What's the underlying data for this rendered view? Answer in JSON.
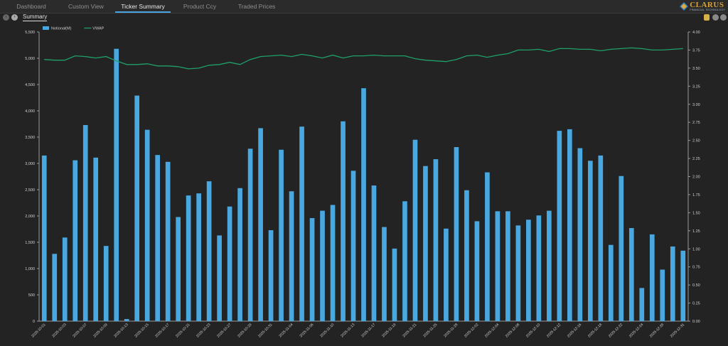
{
  "app": {
    "logo_text": "CLARUS",
    "logo_sub": "FINANCIAL TECHNOLOGY",
    "tabs": [
      {
        "label": "Dashboard",
        "active": false
      },
      {
        "label": "Custom View",
        "active": false
      },
      {
        "label": "Ticker Summary",
        "active": true
      },
      {
        "label": "Product Ccy",
        "active": false
      },
      {
        "label": "Traded Prices",
        "active": false
      }
    ],
    "subtab_label": "Summary",
    "accent_color": "#4aa3df"
  },
  "chart_data": {
    "type": "bar",
    "legend": [
      {
        "name": "Notional(M)",
        "color": "#4aa8e0"
      },
      {
        "name": "VWAP",
        "color": "#1fa06a"
      }
    ],
    "legend_position": "top-left",
    "categories": [
      "2025-10-01",
      "2025-10-02",
      "2025-10-03",
      "2025-10-06",
      "2025-10-07",
      "2025-10-08",
      "2025-10-09",
      "2025-10-10",
      "2025-10-13",
      "2025-10-14",
      "2025-10-15",
      "2025-10-16",
      "2025-10-17",
      "2025-10-20",
      "2025-10-21",
      "2025-10-22",
      "2025-10-23",
      "2025-10-24",
      "2025-10-27",
      "2025-10-28",
      "2025-10-29",
      "2025-10-30",
      "2025-10-31",
      "2025-11-03",
      "2025-11-04",
      "2025-11-05",
      "2025-11-06",
      "2025-11-07",
      "2025-11-10",
      "2025-11-12",
      "2025-11-13",
      "2025-11-14",
      "2025-11-17",
      "2025-11-18",
      "2025-11-19",
      "2025-11-20",
      "2025-11-21",
      "2025-11-24",
      "2025-11-25",
      "2025-11-26",
      "2025-11-28",
      "2025-12-01",
      "2025-12-02",
      "2025-12-03",
      "2025-12-04",
      "2025-12-05",
      "2025-12-08",
      "2025-12-09",
      "2025-12-10",
      "2025-12-11",
      "2025-12-12",
      "2025-12-15",
      "2025-12-16",
      "2025-12-17",
      "2025-12-18",
      "2025-12-19",
      "2025-12-22",
      "2025-12-23",
      "2025-12-24",
      "2025-12-26",
      "2025-12-29",
      "2025-12-30",
      "2025-12-31"
    ],
    "series": [
      {
        "name": "Notional(M)",
        "axis": "left",
        "values": [
          3150,
          1280,
          1590,
          3060,
          3730,
          3110,
          1430,
          5180,
          40,
          4290,
          3640,
          3160,
          3030,
          1980,
          2390,
          2430,
          2660,
          1630,
          2180,
          2530,
          3280,
          3670,
          1730,
          3260,
          2470,
          3700,
          1960,
          2100,
          2210,
          3800,
          2860,
          4430,
          2580,
          1790,
          1380,
          2280,
          3450,
          2950,
          3080,
          1760,
          3310,
          2490,
          1900,
          2830,
          2090,
          2090,
          1820,
          1930,
          2010,
          2100,
          3620,
          3650,
          3290,
          3050,
          3150,
          1450,
          2760,
          1770,
          630,
          1650,
          980,
          1420,
          1340
        ]
      },
      {
        "name": "VWAP",
        "axis": "right",
        "values": [
          3.62,
          3.61,
          3.61,
          3.67,
          3.66,
          3.64,
          3.66,
          3.6,
          3.55,
          3.55,
          3.56,
          3.53,
          3.53,
          3.52,
          3.49,
          3.5,
          3.54,
          3.55,
          3.58,
          3.55,
          3.62,
          3.66,
          3.67,
          3.68,
          3.66,
          3.69,
          3.67,
          3.64,
          3.68,
          3.64,
          3.67,
          3.67,
          3.68,
          3.67,
          3.67,
          3.67,
          3.63,
          3.61,
          3.6,
          3.59,
          3.62,
          3.67,
          3.68,
          3.65,
          3.68,
          3.7,
          3.75,
          3.75,
          3.76,
          3.73,
          3.77,
          3.77,
          3.76,
          3.76,
          3.74,
          3.76,
          3.77,
          3.78,
          3.77,
          3.75,
          3.75,
          3.76,
          3.77
        ]
      }
    ],
    "yleft": {
      "min": 0,
      "max": 5500,
      "ticks": [
        "0",
        "500",
        "1,000",
        "1,500",
        "2,000",
        "2,500",
        "3,000",
        "3,500",
        "4,000",
        "4,500",
        "5,000",
        "5,500"
      ]
    },
    "yright": {
      "min": 0,
      "max": 4.0,
      "ticks": [
        "0.00",
        "0.25",
        "0.50",
        "0.75",
        "1.00",
        "1.25",
        "1.50",
        "1.75",
        "2.00",
        "2.25",
        "2.50",
        "2.75",
        "3.00",
        "3.25",
        "3.50",
        "3.75",
        "4.00"
      ]
    },
    "grid": false
  }
}
